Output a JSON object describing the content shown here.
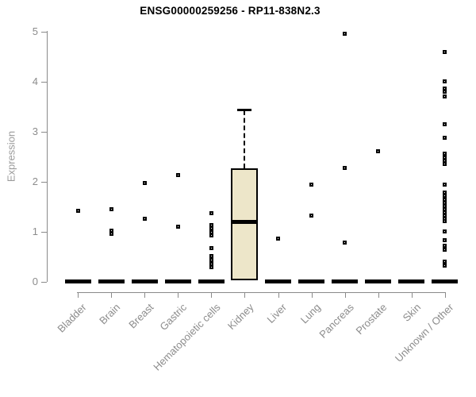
{
  "chart_data": {
    "type": "boxplot",
    "title": "ENSG00000259256 - RP11-838N2.3",
    "ylabel": "Expression",
    "xlabel": "",
    "ylim": [
      0,
      5
    ],
    "yticks": [
      0,
      1,
      2,
      3,
      4,
      5
    ],
    "grid": false,
    "legend": null,
    "categories": [
      "Bladder",
      "Brain",
      "Breast",
      "Gastric",
      "Hematopoietic cells",
      "Kidney",
      "Liver",
      "Lung",
      "Pancreas",
      "Prostate",
      "Skin",
      "Unknown / Other"
    ],
    "boxes": [
      {
        "category": "Bladder",
        "min": 0,
        "q1": 0,
        "median": 0,
        "q3": 0,
        "max": 0,
        "outliers": [
          1.41
        ]
      },
      {
        "category": "Brain",
        "min": 0,
        "q1": 0,
        "median": 0,
        "q3": 0,
        "max": 0,
        "outliers": [
          1.44,
          1.02,
          0.95
        ]
      },
      {
        "category": "Breast",
        "min": 0,
        "q1": 0,
        "median": 0,
        "q3": 0,
        "max": 0,
        "outliers": [
          1.97,
          1.25
        ]
      },
      {
        "category": "Gastric",
        "min": 0,
        "q1": 0,
        "median": 0,
        "q3": 0,
        "max": 0,
        "outliers": [
          2.12,
          1.1
        ]
      },
      {
        "category": "Hematopoietic cells",
        "min": 0,
        "q1": 0,
        "median": 0,
        "q3": 0,
        "max": 0,
        "outliers": [
          1.37,
          1.12,
          1.06,
          0.99,
          0.92,
          0.66,
          0.51,
          0.43,
          0.35,
          0.28
        ]
      },
      {
        "category": "Kidney",
        "min": 0,
        "q1": 0.02,
        "median": 1.19,
        "q3": 2.26,
        "max": 3.45,
        "outliers": []
      },
      {
        "category": "Liver",
        "min": 0,
        "q1": 0,
        "median": 0,
        "q3": 0,
        "max": 0,
        "outliers": [
          0.86
        ]
      },
      {
        "category": "Lung",
        "min": 0,
        "q1": 0,
        "median": 0,
        "q3": 0,
        "max": 0,
        "outliers": [
          1.94,
          1.32
        ]
      },
      {
        "category": "Pancreas",
        "min": 0,
        "q1": 0,
        "median": 0,
        "q3": 0,
        "max": 0,
        "outliers": [
          4.96,
          2.27,
          0.77
        ]
      },
      {
        "category": "Prostate",
        "min": 0,
        "q1": 0,
        "median": 0,
        "q3": 0,
        "max": 0,
        "outliers": [
          2.6
        ]
      },
      {
        "category": "Skin",
        "min": 0,
        "q1": 0,
        "median": 0,
        "q3": 0,
        "max": 0,
        "outliers": []
      },
      {
        "category": "Unknown / Other",
        "min": 0,
        "q1": 0,
        "median": 0,
        "q3": 0,
        "max": 0,
        "outliers": [
          4.58,
          4.0,
          3.86,
          3.79,
          3.7,
          3.14,
          2.88,
          2.55,
          2.48,
          2.42,
          2.35,
          1.94,
          1.78,
          1.71,
          1.64,
          1.57,
          1.51,
          1.45,
          1.38,
          1.31,
          1.26,
          1.21,
          1.0,
          0.83,
          0.72,
          0.63,
          0.39,
          0.32
        ]
      }
    ],
    "colors": {
      "box_fill": "#ede6c9",
      "box_border": "#000000",
      "median": "#000000",
      "outlier": "#000000",
      "axis": "#8a8a8a",
      "tick_label": "#8c8c8c",
      "title": "#000000"
    }
  }
}
